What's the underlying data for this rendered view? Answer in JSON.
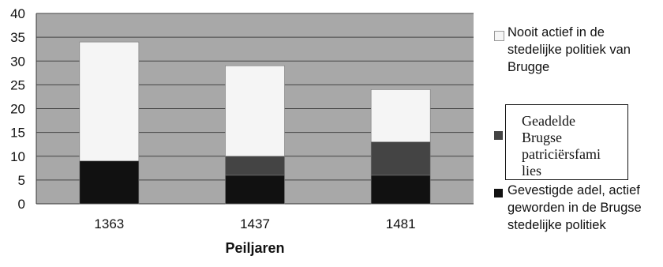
{
  "chart_data": {
    "type": "bar",
    "stacked": true,
    "categories": [
      "1363",
      "1437",
      "1481"
    ],
    "series": [
      {
        "name": "Gevestigde adel, actief geworden in de Brugse stedelijke politiek",
        "values": [
          9,
          6,
          6
        ],
        "color": "#111111"
      },
      {
        "name": "Geadelde Brugse patriciërsfamilies",
        "values": [
          0,
          4,
          7
        ],
        "color": "#444444"
      },
      {
        "name": "Nooit actief in de stedelijke politiek van Brugge",
        "values": [
          25,
          19,
          11
        ],
        "color": "#f5f5f5"
      }
    ],
    "xlabel": "Peiljaren",
    "ylabel": "",
    "ylim": [
      0,
      40
    ],
    "yticks": [
      "0",
      "5",
      "10",
      "15",
      "20",
      "25",
      "30",
      "35",
      "40"
    ],
    "grid": true,
    "plot_background": "#a8a8a8",
    "legend_position": "right"
  },
  "legend": {
    "item_top": "Nooit actief in de stedelijke politiek van Brugge",
    "item_middle": "Geadelde Brugse patriciërsfamilies",
    "item_bottom": "Gevestigde adel, actief geworden in de Brugse stedelijke politiek",
    "item_top_lines": [
      "Nooit actief in de",
      "stedelijke politiek van",
      "Brugge"
    ],
    "item_middle_lines": [
      "Geadelde",
      "Brugse",
      "patriciërsfami",
      "lies"
    ],
    "item_bottom_lines": [
      "Gevestigde adel, actief",
      "geworden in de Brugse",
      "stedelijke politiek"
    ]
  }
}
